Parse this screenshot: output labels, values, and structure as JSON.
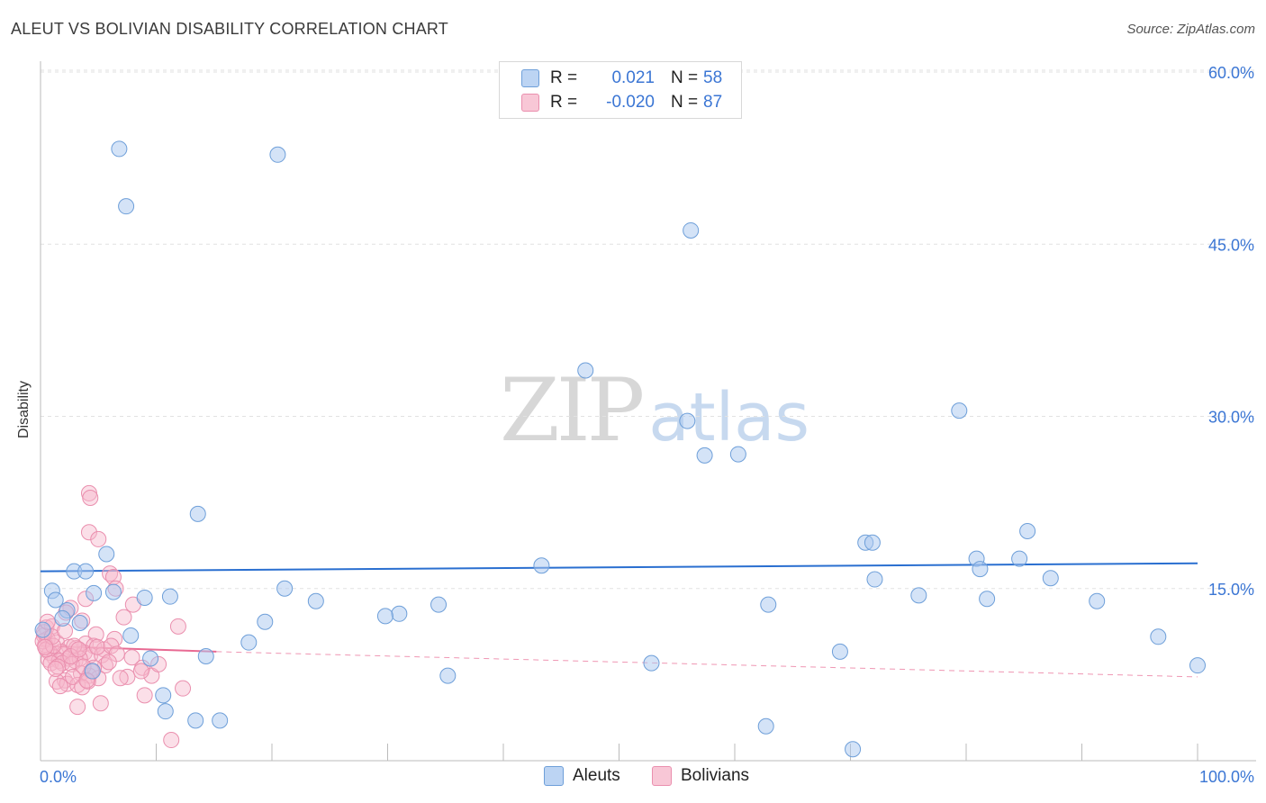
{
  "title": "ALEUT VS BOLIVIAN DISABILITY CORRELATION CHART",
  "source": "Source: ZipAtlas.com",
  "watermark": {
    "zip": "ZIP",
    "atlas": "atlas"
  },
  "legend": {
    "rows": [
      {
        "r_label": "R =",
        "r_value": "0.021",
        "n_label": "N =",
        "n_value": "58"
      },
      {
        "r_label": "R =",
        "r_value": "-0.020",
        "n_label": "N =",
        "n_value": "87"
      }
    ]
  },
  "bottom_legend": [
    "Aleuts",
    "Bolivians"
  ],
  "colors": {
    "aleut_fill": "#a9c8f0",
    "aleut_stroke": "#6e9fd9",
    "aleut_line": "#2a6fd0",
    "bolivian_fill": "#f6b8cb",
    "bolivian_stroke": "#ea8fae",
    "bolivian_line": "#e86a93",
    "tick_text": "#3b76d4",
    "grid": "#e2e2e2"
  },
  "chart_data": {
    "type": "scatter",
    "title": "ALEUT VS BOLIVIAN DISABILITY CORRELATION CHART",
    "xlabel": "",
    "ylabel": "Disability",
    "xlim": [
      0,
      100
    ],
    "ylim": [
      0,
      60
    ],
    "x_tick_labels": [
      "0.0%",
      "100.0%"
    ],
    "y_ticks": [
      15,
      30,
      45,
      60
    ],
    "y_tick_labels": [
      "15.0%",
      "30.0%",
      "45.0%",
      "60.0%"
    ],
    "grid": true,
    "series": [
      {
        "name": "Aleuts",
        "r": 0.021,
        "n": 58,
        "trend": {
          "x": [
            0,
            100
          ],
          "y": [
            16.5,
            17.2
          ],
          "style": "solid"
        },
        "points": [
          {
            "x": 6.8,
            "y": 53.3
          },
          {
            "x": 20.5,
            "y": 52.8
          },
          {
            "x": 7.4,
            "y": 48.3
          },
          {
            "x": 56.2,
            "y": 46.2
          },
          {
            "x": 47.1,
            "y": 34.0
          },
          {
            "x": 79.4,
            "y": 30.5
          },
          {
            "x": 55.9,
            "y": 29.6
          },
          {
            "x": 57.4,
            "y": 26.6
          },
          {
            "x": 60.3,
            "y": 26.7
          },
          {
            "x": 13.6,
            "y": 21.5
          },
          {
            "x": 85.3,
            "y": 20.0
          },
          {
            "x": 71.3,
            "y": 19.0
          },
          {
            "x": 71.9,
            "y": 19.0
          },
          {
            "x": 5.7,
            "y": 18.0
          },
          {
            "x": 80.9,
            "y": 17.6
          },
          {
            "x": 84.6,
            "y": 17.6
          },
          {
            "x": 43.3,
            "y": 17.0
          },
          {
            "x": 81.2,
            "y": 16.7
          },
          {
            "x": 2.9,
            "y": 16.5
          },
          {
            "x": 3.9,
            "y": 16.5
          },
          {
            "x": 72.1,
            "y": 15.8
          },
          {
            "x": 87.3,
            "y": 15.9
          },
          {
            "x": 21.1,
            "y": 15.0
          },
          {
            "x": 1.0,
            "y": 14.8
          },
          {
            "x": 6.3,
            "y": 14.7
          },
          {
            "x": 4.6,
            "y": 14.6
          },
          {
            "x": 9.0,
            "y": 14.2
          },
          {
            "x": 11.2,
            "y": 14.3
          },
          {
            "x": 75.9,
            "y": 14.4
          },
          {
            "x": 1.3,
            "y": 14.0
          },
          {
            "x": 23.8,
            "y": 13.9
          },
          {
            "x": 81.8,
            "y": 14.1
          },
          {
            "x": 91.3,
            "y": 13.9
          },
          {
            "x": 34.4,
            "y": 13.6
          },
          {
            "x": 62.9,
            "y": 13.6
          },
          {
            "x": 2.3,
            "y": 13.1
          },
          {
            "x": 31.0,
            "y": 12.8
          },
          {
            "x": 29.8,
            "y": 12.6
          },
          {
            "x": 1.9,
            "y": 12.4
          },
          {
            "x": 3.4,
            "y": 12.0
          },
          {
            "x": 19.4,
            "y": 12.1
          },
          {
            "x": 7.8,
            "y": 10.9
          },
          {
            "x": 96.6,
            "y": 10.8
          },
          {
            "x": 18.0,
            "y": 10.3
          },
          {
            "x": 69.1,
            "y": 9.5
          },
          {
            "x": 14.3,
            "y": 9.1
          },
          {
            "x": 9.5,
            "y": 8.9
          },
          {
            "x": 52.8,
            "y": 8.5
          },
          {
            "x": 100.0,
            "y": 8.3
          },
          {
            "x": 4.5,
            "y": 7.8
          },
          {
            "x": 35.2,
            "y": 7.4
          },
          {
            "x": 10.6,
            "y": 5.7
          },
          {
            "x": 10.8,
            "y": 4.3
          },
          {
            "x": 13.4,
            "y": 3.5
          },
          {
            "x": 15.5,
            "y": 3.5
          },
          {
            "x": 62.7,
            "y": 3.0
          },
          {
            "x": 70.2,
            "y": 1.0
          },
          {
            "x": 0.2,
            "y": 11.4
          }
        ]
      },
      {
        "name": "Bolivians",
        "r": -0.02,
        "n": 87,
        "trend": {
          "x": [
            0,
            15.2
          ],
          "y": [
            10.0,
            9.5
          ],
          "style": "solid"
        },
        "trend_extension": {
          "x": [
            15.2,
            100
          ],
          "y": [
            9.5,
            7.3
          ],
          "style": "dashed"
        },
        "points": [
          {
            "x": 4.2,
            "y": 23.3
          },
          {
            "x": 4.3,
            "y": 22.9
          },
          {
            "x": 4.2,
            "y": 19.9
          },
          {
            "x": 5.0,
            "y": 19.3
          },
          {
            "x": 6.0,
            "y": 16.3
          },
          {
            "x": 6.3,
            "y": 16.0
          },
          {
            "x": 6.5,
            "y": 15.0
          },
          {
            "x": 3.9,
            "y": 14.1
          },
          {
            "x": 8.0,
            "y": 13.6
          },
          {
            "x": 2.6,
            "y": 13.3
          },
          {
            "x": 2.2,
            "y": 12.9
          },
          {
            "x": 7.2,
            "y": 12.5
          },
          {
            "x": 3.6,
            "y": 12.2
          },
          {
            "x": 0.5,
            "y": 11.6
          },
          {
            "x": 1.0,
            "y": 11.7
          },
          {
            "x": 11.9,
            "y": 11.7
          },
          {
            "x": 0.3,
            "y": 10.9
          },
          {
            "x": 4.8,
            "y": 11.0
          },
          {
            "x": 0.6,
            "y": 10.6
          },
          {
            "x": 6.4,
            "y": 10.6
          },
          {
            "x": 1.4,
            "y": 10.3
          },
          {
            "x": 3.9,
            "y": 10.2
          },
          {
            "x": 4.6,
            "y": 10.0
          },
          {
            "x": 0.4,
            "y": 10.1
          },
          {
            "x": 2.5,
            "y": 9.9
          },
          {
            "x": 3.1,
            "y": 9.8
          },
          {
            "x": 5.5,
            "y": 9.7
          },
          {
            "x": 1.8,
            "y": 9.5
          },
          {
            "x": 0.8,
            "y": 9.4
          },
          {
            "x": 2.0,
            "y": 9.3
          },
          {
            "x": 3.8,
            "y": 9.4
          },
          {
            "x": 4.3,
            "y": 9.2
          },
          {
            "x": 5.3,
            "y": 9.2
          },
          {
            "x": 1.2,
            "y": 9.0
          },
          {
            "x": 2.4,
            "y": 8.9
          },
          {
            "x": 0.7,
            "y": 8.8
          },
          {
            "x": 1.6,
            "y": 8.7
          },
          {
            "x": 3.0,
            "y": 8.7
          },
          {
            "x": 3.4,
            "y": 8.9
          },
          {
            "x": 0.9,
            "y": 8.5
          },
          {
            "x": 1.9,
            "y": 8.5
          },
          {
            "x": 2.7,
            "y": 8.4
          },
          {
            "x": 5.6,
            "y": 8.3
          },
          {
            "x": 1.5,
            "y": 8.2
          },
          {
            "x": 4.6,
            "y": 8.1
          },
          {
            "x": 8.8,
            "y": 8.1
          },
          {
            "x": 3.5,
            "y": 7.6
          },
          {
            "x": 4.2,
            "y": 7.4
          },
          {
            "x": 9.6,
            "y": 7.4
          },
          {
            "x": 7.5,
            "y": 7.3
          },
          {
            "x": 5.0,
            "y": 7.2
          },
          {
            "x": 2.1,
            "y": 7.0
          },
          {
            "x": 1.4,
            "y": 6.9
          },
          {
            "x": 2.3,
            "y": 6.7
          },
          {
            "x": 1.7,
            "y": 6.5
          },
          {
            "x": 3.2,
            "y": 6.6
          },
          {
            "x": 4.1,
            "y": 6.9
          },
          {
            "x": 9.0,
            "y": 5.7
          },
          {
            "x": 12.3,
            "y": 6.3
          },
          {
            "x": 5.2,
            "y": 5.0
          },
          {
            "x": 3.2,
            "y": 4.7
          },
          {
            "x": 11.3,
            "y": 1.8
          },
          {
            "x": 0.2,
            "y": 10.4
          },
          {
            "x": 0.5,
            "y": 9.7
          },
          {
            "x": 2.9,
            "y": 10.0
          },
          {
            "x": 3.7,
            "y": 8.2
          },
          {
            "x": 4.9,
            "y": 9.9
          },
          {
            "x": 6.1,
            "y": 10.0
          },
          {
            "x": 0.3,
            "y": 11.2
          },
          {
            "x": 1.1,
            "y": 10.0
          },
          {
            "x": 2.6,
            "y": 9.1
          },
          {
            "x": 3.3,
            "y": 9.7
          },
          {
            "x": 4.4,
            "y": 7.8
          },
          {
            "x": 6.6,
            "y": 9.3
          },
          {
            "x": 7.9,
            "y": 9.0
          },
          {
            "x": 1.3,
            "y": 8.0
          },
          {
            "x": 2.8,
            "y": 7.3
          },
          {
            "x": 0.6,
            "y": 12.1
          },
          {
            "x": 5.9,
            "y": 8.6
          },
          {
            "x": 8.7,
            "y": 7.8
          },
          {
            "x": 10.2,
            "y": 8.4
          },
          {
            "x": 1.0,
            "y": 10.8
          },
          {
            "x": 2.1,
            "y": 11.3
          },
          {
            "x": 3.6,
            "y": 6.4
          },
          {
            "x": 4.0,
            "y": 7.0
          },
          {
            "x": 6.9,
            "y": 7.2
          },
          {
            "x": 0.4,
            "y": 9.9
          }
        ]
      }
    ]
  }
}
